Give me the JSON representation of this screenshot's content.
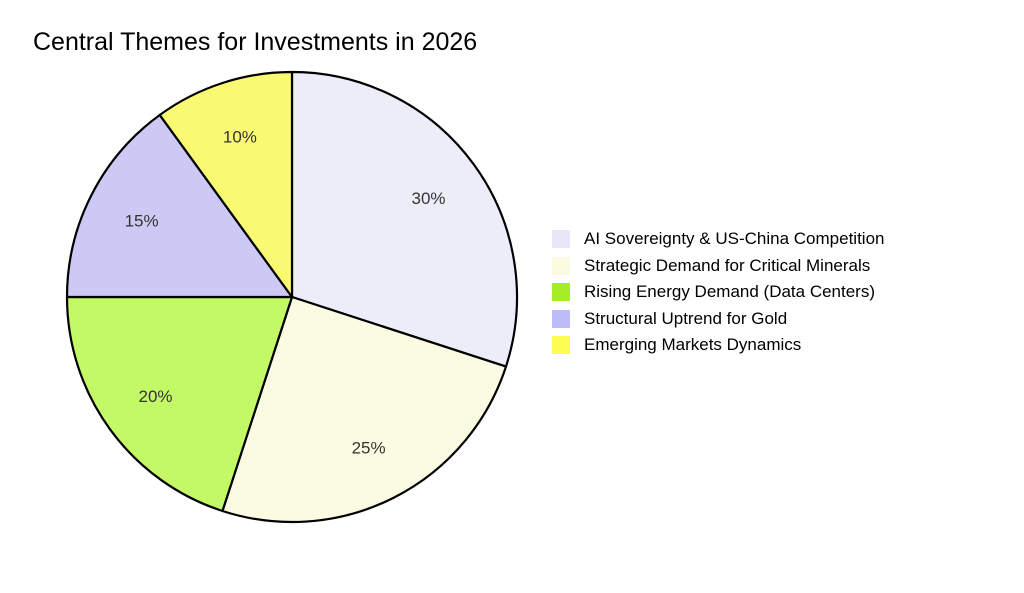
{
  "page": {
    "background_color": "#ffffff"
  },
  "chart_data": {
    "type": "pie",
    "title": "Central Themes for Investments in 2026",
    "start_angle_deg": 0,
    "direction": "clockwise",
    "legend_position": "right",
    "grid": false,
    "outline_color": "#000000",
    "outline_width": 2.2,
    "percent_label_color": "#333333",
    "title_color": "#000000",
    "categories": [
      "AI Sovereignty & US-China Competition",
      "Strategic Demand for Critical Minerals",
      "Rising Energy Demand (Data Centers)",
      "Structural Uptrend for Gold",
      "Emerging Markets Dynamics"
    ],
    "values": [
      30,
      25,
      20,
      15,
      10
    ],
    "slices": [
      {
        "label": "AI Sovereignty & US-China Competition",
        "value": 30,
        "percent_label": "30%",
        "slice_color": "#EDEDFA",
        "legend_color": "#E7E7F8"
      },
      {
        "label": "Strategic Demand for Critical Minerals",
        "value": 25,
        "percent_label": "25%",
        "slice_color": "#FBFBE3",
        "legend_color": "#FBFBE2"
      },
      {
        "label": "Rising Energy Demand (Data Centers)",
        "value": 20,
        "percent_label": "20%",
        "slice_color": "#C3F966",
        "legend_color": "#A5EE27"
      },
      {
        "label": "Structural Uptrend for Gold",
        "value": 15,
        "percent_label": "15%",
        "slice_color": "#CCCAF5",
        "legend_color": "#BDBCF8"
      },
      {
        "label": "Emerging Markets Dynamics",
        "value": 10,
        "percent_label": "10%",
        "slice_color": "#FAFA72",
        "legend_color": "#FCFC50"
      }
    ]
  }
}
